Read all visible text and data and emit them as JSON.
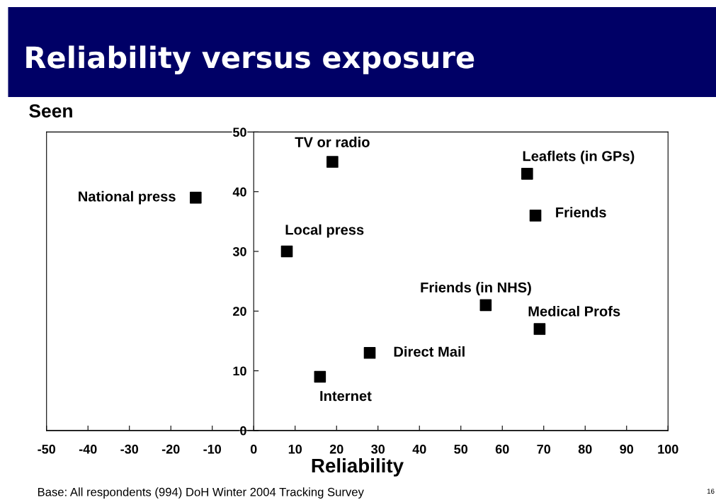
{
  "chart_data": {
    "type": "scatter",
    "title": "Reliability versus exposure",
    "xlabel": "Reliability",
    "ylabel": "Seen",
    "x": [
      -14,
      19,
      8,
      66,
      68,
      56,
      69,
      28,
      16
    ],
    "series": [
      {
        "color": "#000000",
        "values": [
          39,
          45,
          30,
          43,
          36,
          21,
          17,
          13,
          9
        ]
      }
    ],
    "marker": "square",
    "xlim": [
      -50,
      100
    ],
    "xticks": [
      -50,
      -40,
      -30,
      -20,
      -10,
      0,
      10,
      20,
      30,
      40,
      50,
      60,
      70,
      80,
      90,
      100
    ],
    "ylim": [
      0,
      50
    ],
    "yticks": [
      0,
      10,
      20,
      30,
      40,
      50
    ],
    "grid": false,
    "legend": false,
    "annotations": [
      {
        "text": "National press",
        "x": -14,
        "y": 39
      },
      {
        "text": "TV or radio",
        "x": 19,
        "y": 45
      },
      {
        "text": "Local press",
        "x": 8,
        "y": 30
      },
      {
        "text": "Leaflets (in GPs)",
        "x": 66,
        "y": 43
      },
      {
        "text": "Friends",
        "x": 68,
        "y": 36
      },
      {
        "text": "Friends (in NHS)",
        "x": 56,
        "y": 21
      },
      {
        "text": "Medical Profs",
        "x": 69,
        "y": 17
      },
      {
        "text": "Direct Mail",
        "x": 28,
        "y": 13
      },
      {
        "text": "Internet",
        "x": 16,
        "y": 9
      },
      "Base: All respondents (994) DoH Winter 2004 Tracking Survey",
      "16"
    ]
  }
}
